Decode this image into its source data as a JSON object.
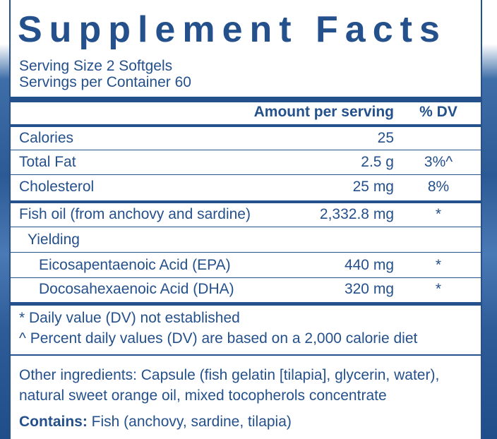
{
  "title": "Supplement Facts",
  "serving_size": "Serving Size 2 Softgels",
  "servings_per_container": "Servings per Container 60",
  "header": {
    "amount": "Amount per serving",
    "dv": "% DV"
  },
  "rows": [
    {
      "name": "Calories",
      "amount": "25",
      "dv": ""
    },
    {
      "name": "Total Fat",
      "amount": "2.5 g",
      "dv": "3%^"
    },
    {
      "name": "Cholesterol",
      "amount": "25 mg",
      "dv": "8%"
    },
    {
      "name": "Fish oil (from anchovy and sardine)",
      "amount": "2,332.8 mg",
      "dv": "*"
    },
    {
      "name": "Yielding",
      "amount": "",
      "dv": ""
    },
    {
      "name": "Eicosapentaenoic Acid (EPA)",
      "amount": "440 mg",
      "dv": "*"
    },
    {
      "name": "Docosahexaenoic Acid (DHA)",
      "amount": "320 mg",
      "dv": "*"
    }
  ],
  "notes": [
    "* Daily value (DV) not established",
    "^ Percent daily values (DV) are based on a 2,000 calorie diet"
  ],
  "other_ingredients": [
    "Other ingredients: Capsule (fish gelatin [tilapia], glycerin, water),",
    "natural sweet orange oil, mixed tocopherols concentrate"
  ],
  "contains": {
    "label": "Contains:",
    "text": " Fish (anchovy, sardine, tilapia)"
  },
  "colors": {
    "text": "#24508c",
    "background_blue": "#2c5a95"
  }
}
